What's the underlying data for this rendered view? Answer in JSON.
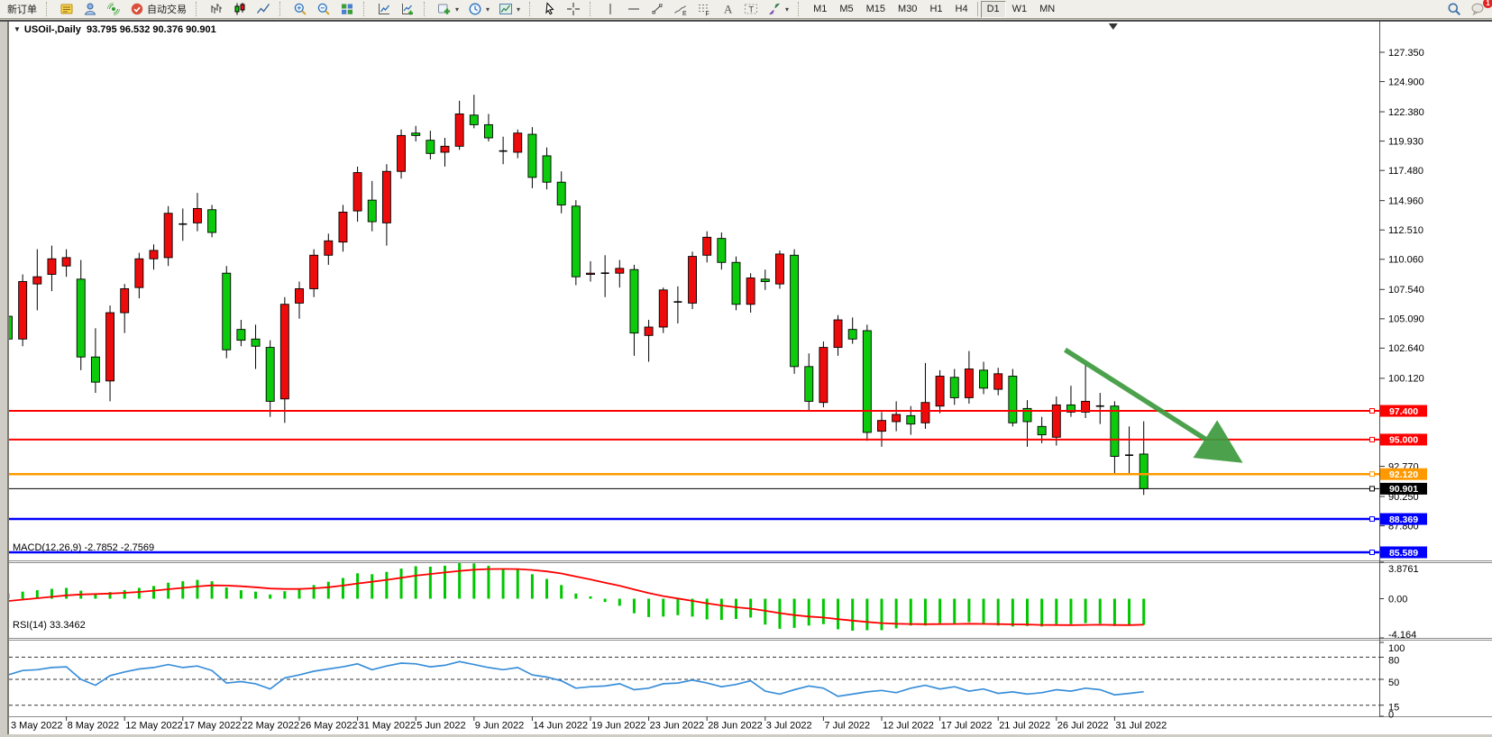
{
  "toolbar": {
    "new_order_label": "新订单",
    "auto_trading_label": "自动交易",
    "timeframes": [
      "M1",
      "M5",
      "M15",
      "M30",
      "H1",
      "H4",
      "D1",
      "W1",
      "MN"
    ],
    "active_timeframe": "D1",
    "notification_badge": "1"
  },
  "chart": {
    "symbol_period": "USOil-,Daily",
    "ohlc_display": "93.795 96.532 90.376 90.901"
  },
  "chart_data": {
    "type": "candlestick",
    "title": "USOil-,Daily",
    "ohlc_display": "93.795 96.532 90.376 90.901",
    "bars_per_label": 4,
    "x_labels": [
      "3 May 2022",
      "8 May 2022",
      "12 May 2022",
      "17 May 2022",
      "22 May 2022",
      "26 May 2022",
      "31 May 2022",
      "5 Jun 2022",
      "9 Jun 2022",
      "14 Jun 2022",
      "19 Jun 2022",
      "23 Jun 2022",
      "28 Jun 2022",
      "3 Jul 2022",
      "7 Jul 2022",
      "12 Jul 2022",
      "17 Jul 2022",
      "21 Jul 2022",
      "26 Jul 2022",
      "31 Jul 2022"
    ],
    "price_axis_ticks": [
      127.35,
      124.9,
      122.38,
      119.93,
      117.48,
      114.96,
      112.51,
      110.06,
      107.54,
      105.09,
      102.64,
      100.12,
      92.77,
      90.25,
      87.8
    ],
    "candles": [
      [
        105.3,
        105.7,
        102.6,
        103.4
      ],
      [
        103.4,
        108.8,
        102.8,
        108.2
      ],
      [
        108.0,
        110.9,
        105.8,
        108.6
      ],
      [
        108.8,
        111.2,
        107.4,
        110.1
      ],
      [
        109.5,
        110.9,
        108.6,
        110.2
      ],
      [
        108.4,
        110.0,
        100.8,
        101.9
      ],
      [
        101.9,
        104.3,
        98.9,
        99.8
      ],
      [
        99.9,
        106.2,
        98.2,
        105.6
      ],
      [
        105.6,
        108.0,
        103.9,
        107.6
      ],
      [
        107.7,
        110.6,
        106.8,
        110.1
      ],
      [
        110.1,
        111.3,
        109.2,
        110.8
      ],
      [
        110.2,
        114.5,
        109.5,
        113.9
      ],
      [
        113.0,
        114.3,
        111.6,
        113.0
      ],
      [
        113.1,
        115.6,
        112.4,
        114.3
      ],
      [
        114.2,
        114.6,
        111.9,
        112.3
      ],
      [
        108.9,
        109.5,
        101.8,
        102.5
      ],
      [
        104.2,
        105.0,
        102.8,
        103.3
      ],
      [
        103.4,
        104.6,
        100.9,
        102.8
      ],
      [
        102.7,
        103.3,
        96.9,
        98.2
      ],
      [
        98.4,
        106.9,
        96.4,
        106.3
      ],
      [
        106.4,
        108.2,
        105.1,
        107.6
      ],
      [
        107.6,
        110.9,
        106.9,
        110.4
      ],
      [
        110.4,
        112.2,
        109.6,
        111.6
      ],
      [
        111.5,
        114.6,
        110.7,
        114.0
      ],
      [
        114.1,
        117.8,
        113.2,
        117.3
      ],
      [
        115.0,
        116.6,
        112.4,
        113.2
      ],
      [
        113.1,
        118.0,
        111.2,
        117.4
      ],
      [
        117.4,
        120.9,
        116.8,
        120.4
      ],
      [
        120.6,
        121.2,
        119.9,
        120.4
      ],
      [
        120.0,
        120.8,
        118.4,
        118.9
      ],
      [
        119.0,
        120.2,
        117.8,
        119.5
      ],
      [
        119.5,
        123.3,
        119.2,
        122.2
      ],
      [
        122.1,
        123.8,
        121.0,
        121.3
      ],
      [
        121.3,
        122.2,
        119.9,
        120.2
      ],
      [
        119.1,
        120.3,
        118.0,
        119.1
      ],
      [
        119.0,
        120.9,
        118.5,
        120.6
      ],
      [
        120.5,
        121.1,
        116.0,
        116.9
      ],
      [
        118.7,
        119.4,
        115.9,
        116.5
      ],
      [
        116.5,
        117.4,
        113.9,
        114.6
      ],
      [
        114.5,
        115.0,
        107.9,
        108.6
      ],
      [
        108.8,
        109.9,
        108.2,
        108.9
      ],
      [
        108.9,
        110.4,
        106.9,
        108.9
      ],
      [
        108.9,
        110.0,
        107.7,
        109.3
      ],
      [
        109.2,
        109.6,
        102.0,
        103.9
      ],
      [
        103.7,
        105.0,
        101.5,
        104.4
      ],
      [
        104.4,
        107.7,
        103.9,
        107.5
      ],
      [
        106.5,
        107.8,
        104.7,
        106.5
      ],
      [
        106.4,
        110.7,
        105.9,
        110.3
      ],
      [
        110.4,
        112.4,
        109.8,
        111.9
      ],
      [
        111.8,
        112.3,
        109.2,
        109.8
      ],
      [
        109.8,
        110.3,
        105.8,
        106.3
      ],
      [
        106.3,
        108.9,
        105.6,
        108.5
      ],
      [
        108.4,
        109.2,
        107.5,
        108.2
      ],
      [
        108.0,
        110.8,
        107.6,
        110.5
      ],
      [
        110.4,
        110.9,
        100.5,
        101.1
      ],
      [
        101.1,
        102.2,
        97.4,
        98.2
      ],
      [
        98.1,
        103.2,
        97.7,
        102.7
      ],
      [
        102.7,
        105.4,
        102.0,
        105.0
      ],
      [
        104.2,
        105.2,
        103.0,
        103.4
      ],
      [
        104.1,
        104.6,
        94.9,
        95.6
      ],
      [
        95.7,
        97.3,
        94.4,
        96.6
      ],
      [
        96.5,
        98.2,
        95.7,
        97.1
      ],
      [
        97.0,
        97.8,
        95.4,
        96.3
      ],
      [
        96.4,
        101.4,
        95.9,
        98.1
      ],
      [
        97.8,
        100.8,
        97.2,
        100.3
      ],
      [
        100.2,
        100.9,
        97.9,
        98.5
      ],
      [
        98.5,
        102.4,
        98.0,
        100.9
      ],
      [
        100.8,
        101.5,
        98.8,
        99.3
      ],
      [
        99.2,
        101.0,
        98.7,
        100.5
      ],
      [
        100.3,
        100.9,
        96.1,
        96.4
      ],
      [
        97.6,
        98.3,
        94.4,
        96.5
      ],
      [
        96.1,
        96.9,
        94.7,
        95.4
      ],
      [
        95.2,
        98.6,
        94.5,
        97.9
      ],
      [
        97.9,
        99.5,
        96.9,
        97.3
      ],
      [
        97.3,
        101.3,
        96.8,
        98.2
      ],
      [
        97.8,
        98.9,
        96.3,
        97.8
      ],
      [
        97.8,
        98.2,
        92.2,
        93.6
      ],
      [
        93.7,
        96.1,
        92.2,
        93.7
      ],
      [
        93.795,
        96.532,
        90.376,
        90.901
      ]
    ],
    "hlines": [
      {
        "price": 97.4,
        "label": "97.400",
        "color": "#ff0000",
        "width": 2
      },
      {
        "price": 95.0,
        "label": "95.000",
        "color": "#ff0000",
        "width": 2
      },
      {
        "price": 92.12,
        "label": "92.120",
        "color": "#ff9900",
        "width": 2.5
      },
      {
        "price": 88.369,
        "label": "88.369",
        "color": "#0000ff",
        "width": 2.5
      },
      {
        "price": 85.589,
        "label": "85.589",
        "color": "#0000ff",
        "width": 2.5
      }
    ],
    "current_price_line": {
      "price": 90.901,
      "label": "90.901",
      "color": "#000000",
      "width": 1
    },
    "arrow_annotation": {
      "from_bar": 72.6,
      "from_price": 102.5,
      "to_bar": 84.6,
      "to_price": 93.2,
      "color": "#3d9b3d"
    },
    "shift_marker_bar": 75.9,
    "colors": {
      "up": "#ee0b0b",
      "down": "#0ccb0c",
      "wick": "#000000",
      "macd_hist": "#00c800",
      "macd_signal": "#ff0000",
      "rsi_line": "#3a8fd9"
    },
    "macd": {
      "label": "MACD(12,26,9)",
      "values_display": "-2.7852 -2.7569",
      "axis_labels": [
        "3.8761",
        "0.00",
        "-4.164"
      ],
      "axis_values": [
        3.8761,
        0.0,
        -4.164
      ],
      "hist": [
        0.55,
        0.75,
        0.9,
        1.05,
        1.15,
        0.85,
        0.55,
        0.7,
        0.9,
        1.15,
        1.35,
        1.7,
        1.85,
        2.0,
        1.85,
        1.2,
        0.9,
        0.75,
        0.45,
        0.8,
        1.05,
        1.45,
        1.8,
        2.2,
        2.7,
        2.6,
        2.85,
        3.2,
        3.45,
        3.4,
        3.5,
        3.88,
        3.75,
        3.5,
        3.2,
        3.1,
        2.6,
        2.1,
        1.45,
        0.55,
        0.25,
        -0.35,
        -0.75,
        -1.55,
        -1.95,
        -1.9,
        -1.75,
        -1.9,
        -2.2,
        -2.25,
        -2.15,
        -2.0,
        -2.75,
        -3.2,
        -3.1,
        -2.85,
        -2.7,
        -3.25,
        -3.4,
        -3.35,
        -3.35,
        -3.15,
        -2.85,
        -2.85,
        -2.6,
        -2.65,
        -2.5,
        -2.75,
        -2.85,
        -2.95,
        -2.9,
        -2.95,
        -2.7,
        -2.7,
        -2.6,
        -2.65,
        -2.9,
        -2.85,
        -2.7852
      ],
      "signal": [
        -0.25,
        -0.1,
        0.05,
        0.2,
        0.35,
        0.45,
        0.5,
        0.55,
        0.62,
        0.72,
        0.85,
        1.0,
        1.15,
        1.3,
        1.42,
        1.4,
        1.32,
        1.22,
        1.08,
        1.03,
        1.03,
        1.1,
        1.22,
        1.4,
        1.62,
        1.8,
        2.0,
        2.22,
        2.45,
        2.62,
        2.78,
        2.95,
        3.08,
        3.15,
        3.16,
        3.15,
        3.05,
        2.9,
        2.68,
        2.35,
        2.05,
        1.7,
        1.38,
        0.98,
        0.6,
        0.28,
        0.02,
        -0.23,
        -0.49,
        -0.72,
        -0.91,
        -1.05,
        -1.28,
        -1.53,
        -1.74,
        -1.89,
        -2.0,
        -2.17,
        -2.33,
        -2.47,
        -2.59,
        -2.66,
        -2.69,
        -2.71,
        -2.7,
        -2.69,
        -2.66,
        -2.68,
        -2.7,
        -2.73,
        -2.75,
        -2.78,
        -2.79,
        -2.8,
        -2.78,
        -2.77,
        -2.79,
        -2.8,
        -2.7569
      ]
    },
    "rsi": {
      "label": "RSI(14)",
      "value_display": "33.3462",
      "axis_labels": [
        "100",
        "80",
        "50",
        "15",
        "0"
      ],
      "levels": [
        80,
        50,
        15
      ],
      "values": [
        56,
        62,
        63,
        66,
        67,
        50,
        42,
        55,
        60,
        64,
        66,
        70,
        66,
        68,
        62,
        45,
        47,
        44,
        37,
        52,
        56,
        61,
        64,
        67,
        71,
        63,
        68,
        72,
        71,
        67,
        69,
        74,
        70,
        66,
        63,
        66,
        56,
        53,
        48,
        38,
        40,
        41,
        44,
        36,
        38,
        44,
        45,
        49,
        45,
        40,
        43,
        48,
        34,
        30,
        36,
        41,
        38,
        27,
        30,
        33,
        35,
        32,
        38,
        42,
        37,
        40,
        34,
        37,
        31,
        33,
        30,
        32,
        36,
        34,
        38,
        36,
        29,
        31,
        33.35
      ]
    }
  }
}
